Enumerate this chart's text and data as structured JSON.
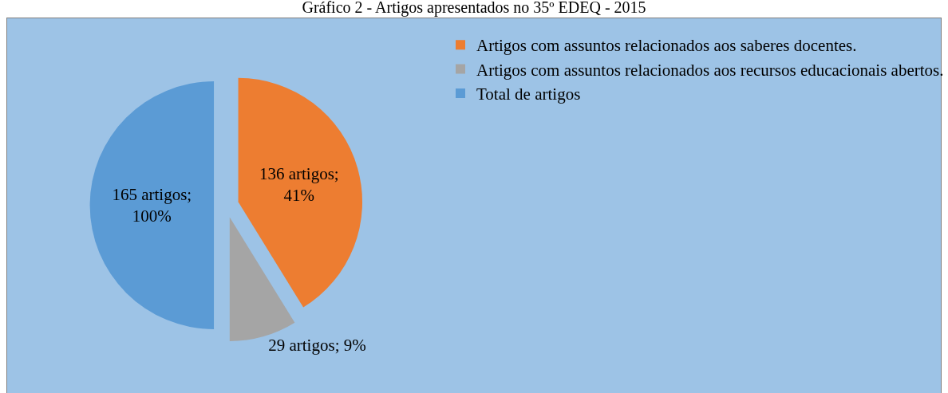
{
  "chart_data": {
    "type": "pie",
    "title": "Gráfico 2 - Artigos apresentados no 35º EDEQ - 2015",
    "categories": [
      "Artigos com assuntos relacionados aos saberes docentes.",
      "Artigos com assuntos relacionados aos recursos educacionais abertos.",
      "Total de artigos"
    ],
    "values": [
      136,
      29,
      165
    ],
    "colors": [
      "#ed7d31",
      "#a5a5a5",
      "#5b9bd5"
    ],
    "value_labels": [
      "136 artigos; 41%",
      "29 artigos; 9%",
      "165 artigos; 100%"
    ],
    "legend": "top right"
  }
}
